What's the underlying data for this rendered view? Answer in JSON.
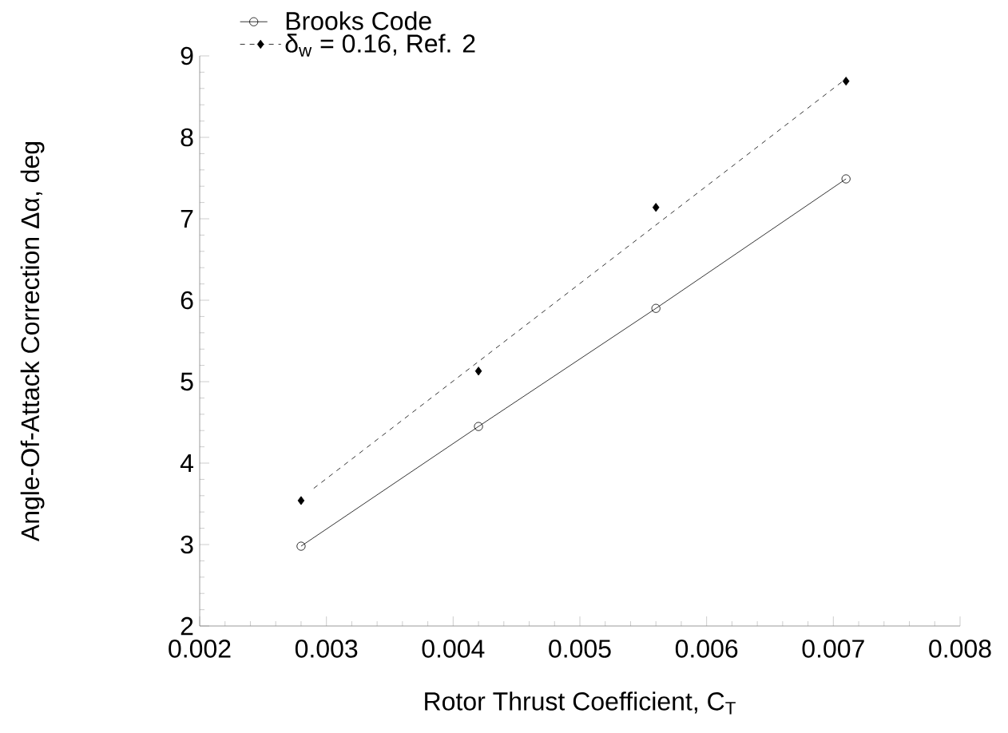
{
  "chart_data": {
    "type": "line",
    "xlabel": "Rotor Thrust Coefficient, C$_{T}$",
    "ylabel": "Angle-Of-Attack Correction Δα, deg",
    "xlim": [
      0.002,
      0.008
    ],
    "xticks": [
      0.002,
      0.003,
      0.004,
      0.005,
      0.006,
      0.007,
      0.008
    ],
    "ylim": [
      2,
      9
    ],
    "yticks": [
      2,
      3,
      4,
      5,
      6,
      7,
      8,
      9
    ],
    "grid": false,
    "legend": "top left",
    "series": [
      {
        "name": "Brooks Code",
        "type": "line",
        "color": "#000000",
        "marker": "circle",
        "line_style": "solid",
        "x": [
          0.0028,
          0.0042,
          0.0056,
          0.0071
        ],
        "values": [
          2.98,
          4.45,
          5.9,
          7.49
        ]
      },
      {
        "name": "δ$_{w}$ = 0.16, Ref. 2",
        "type": "scatter",
        "color": "#000000",
        "marker": "diamond",
        "line_style": "dashed",
        "x": [
          0.0028,
          0.0042,
          0.0056,
          0.0071
        ],
        "values": [
          3.54,
          5.13,
          7.14,
          8.69
        ]
      },
      {
        "color": "#000000",
        "marker": "none",
        "line_style": "dashed",
        "x": [
          0.0029,
          0.0071
        ],
        "values": [
          3.69,
          8.72
        ]
      }
    ]
  }
}
